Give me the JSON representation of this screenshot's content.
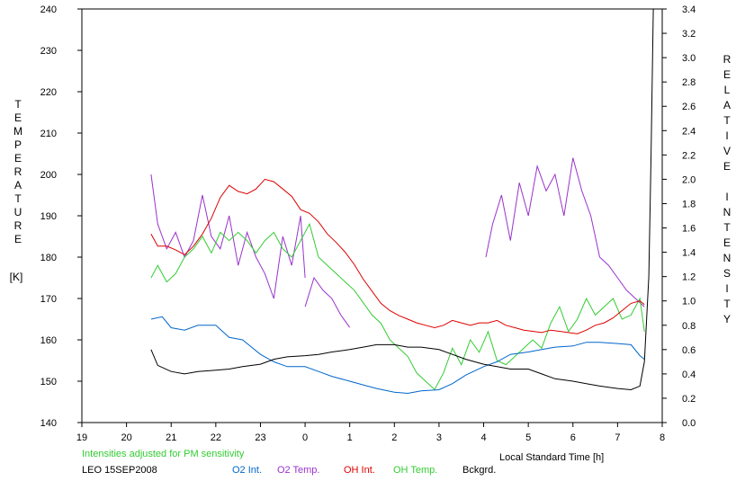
{
  "chart_data": {
    "type": "line",
    "left_axis": {
      "title": "TEMPERATURE",
      "unit": "[K]",
      "ticks": [
        "140",
        "150",
        "160",
        "170",
        "180",
        "190",
        "200",
        "210",
        "220",
        "230",
        "240"
      ],
      "range": [
        140,
        240
      ]
    },
    "right_axis": {
      "title": "RELATIVE INTENSITY",
      "ticks": [
        "0.0",
        "0.2",
        "0.4",
        "0.6",
        "0.8",
        "1.0",
        "1.2",
        "1.4",
        "1.6",
        "1.8",
        "2.0",
        "2.2",
        "2.4",
        "2.6",
        "2.8",
        "3.0",
        "3.2",
        "3.4"
      ],
      "range": [
        0,
        3.4
      ]
    },
    "x_axis": {
      "label": "Local Standard Time [h]",
      "ticks": [
        "19",
        "20",
        "21",
        "22",
        "23",
        "0",
        "1",
        "2",
        "3",
        "4",
        "5",
        "6",
        "7",
        "8"
      ],
      "range": [
        19,
        32
      ]
    },
    "note": "Intensities adjusted for PM sensitivity",
    "station": "LEO 15SEP2008",
    "grid": false,
    "series": [
      {
        "name": "O2 Int.",
        "axis": "right",
        "color": "#0066cc",
        "x": [
          20.55,
          20.8,
          21.0,
          21.3,
          21.6,
          22.0,
          22.3,
          22.6,
          23.0,
          23.3,
          23.6,
          24.0,
          24.3,
          24.6,
          25.0,
          25.3,
          25.6,
          26.0,
          26.3,
          26.6,
          27.0,
          27.3,
          27.6,
          28.0,
          28.3,
          28.6,
          29.0,
          29.3,
          29.6,
          30.0,
          30.3,
          30.6,
          31.0,
          31.3,
          31.5,
          31.6
        ],
        "y": [
          0.85,
          0.87,
          0.78,
          0.76,
          0.8,
          0.8,
          0.7,
          0.68,
          0.56,
          0.5,
          0.46,
          0.46,
          0.42,
          0.38,
          0.34,
          0.31,
          0.28,
          0.25,
          0.24,
          0.26,
          0.27,
          0.32,
          0.39,
          0.46,
          0.5,
          0.56,
          0.58,
          0.6,
          0.62,
          0.63,
          0.66,
          0.66,
          0.65,
          0.64,
          0.55,
          0.52
        ]
      },
      {
        "name": "O2 Temp.",
        "axis": "left",
        "color": "#9933cc",
        "segments": [
          {
            "x": [
              20.55,
              20.7,
              20.9,
              21.1,
              21.3,
              21.5,
              21.7,
              21.9,
              22.1,
              22.3,
              22.5,
              22.7,
              22.9,
              23.1,
              23.3,
              23.5,
              23.7,
              23.9,
              24.0
            ],
            "y": [
              200,
              188,
              182,
              186,
              180,
              184,
              195,
              185,
              182,
              190,
              178,
              186,
              180,
              176,
              170,
              185,
              178,
              190,
              175
            ]
          },
          {
            "x": [
              24.0,
              24.2,
              24.4,
              24.6,
              24.8,
              25.0
            ],
            "y": [
              168,
              175,
              172,
              170,
              166,
              163
            ]
          },
          {
            "x": [
              28.05,
              28.2,
              28.4,
              28.6,
              28.8,
              29.0,
              29.2,
              29.4,
              29.6,
              29.8,
              30.0,
              30.2,
              30.4,
              30.6,
              30.8,
              31.0,
              31.2,
              31.4,
              31.6
            ],
            "y": [
              180,
              188,
              195,
              184,
              198,
              190,
              202,
              196,
              200,
              190,
              204,
              196,
              190,
              180,
              178,
              175,
              172,
              170,
              168
            ]
          }
        ]
      },
      {
        "name": "OH Int.",
        "axis": "right",
        "color": "#dd0000",
        "x": [
          20.55,
          20.7,
          20.9,
          21.1,
          21.3,
          21.5,
          21.7,
          21.9,
          22.1,
          22.3,
          22.5,
          22.7,
          22.9,
          23.1,
          23.3,
          23.5,
          23.7,
          23.9,
          24.1,
          24.3,
          24.5,
          24.7,
          24.9,
          25.1,
          25.3,
          25.5,
          25.7,
          25.9,
          26.1,
          26.3,
          26.5,
          26.7,
          26.9,
          27.1,
          27.3,
          27.5,
          27.7,
          27.9,
          28.1,
          28.3,
          28.5,
          28.7,
          28.9,
          29.1,
          29.3,
          29.5,
          29.7,
          29.9,
          30.1,
          30.3,
          30.5,
          30.7,
          30.9,
          31.1,
          31.3,
          31.5,
          31.6
        ],
        "y": [
          1.55,
          1.45,
          1.45,
          1.42,
          1.38,
          1.45,
          1.55,
          1.68,
          1.85,
          1.95,
          1.9,
          1.88,
          1.92,
          2.0,
          1.98,
          1.92,
          1.86,
          1.75,
          1.72,
          1.65,
          1.55,
          1.48,
          1.4,
          1.3,
          1.18,
          1.08,
          0.98,
          0.92,
          0.88,
          0.85,
          0.82,
          0.8,
          0.78,
          0.8,
          0.84,
          0.82,
          0.8,
          0.82,
          0.82,
          0.84,
          0.8,
          0.78,
          0.76,
          0.75,
          0.74,
          0.76,
          0.75,
          0.74,
          0.73,
          0.76,
          0.8,
          0.82,
          0.86,
          0.92,
          0.98,
          1.0,
          0.97
        ]
      },
      {
        "name": "OH Temp.",
        "axis": "left",
        "color": "#33cc33",
        "x": [
          20.55,
          20.7,
          20.9,
          21.1,
          21.3,
          21.5,
          21.7,
          21.9,
          22.1,
          22.3,
          22.5,
          22.7,
          22.9,
          23.1,
          23.3,
          23.5,
          23.7,
          23.9,
          24.1,
          24.3,
          24.5,
          24.7,
          24.9,
          25.1,
          25.3,
          25.5,
          25.7,
          25.9,
          26.1,
          26.3,
          26.5,
          26.7,
          26.9,
          27.1,
          27.3,
          27.5,
          27.7,
          27.9,
          28.1,
          28.3,
          28.5,
          28.7,
          28.9,
          29.1,
          29.3,
          29.5,
          29.7,
          29.9,
          30.1,
          30.3,
          30.5,
          30.7,
          30.9,
          31.1,
          31.3,
          31.5,
          31.6
        ],
        "y": [
          175,
          178,
          174,
          176,
          180,
          182,
          185,
          181,
          186,
          184,
          186,
          184,
          181,
          184,
          186,
          182,
          180,
          184,
          188,
          180,
          178,
          176,
          174,
          172,
          169,
          166,
          164,
          160,
          158,
          156,
          152,
          150,
          148,
          152,
          158,
          154,
          160,
          157,
          162,
          155,
          154,
          156,
          158,
          160,
          158,
          164,
          168,
          162,
          165,
          170,
          166,
          168,
          170,
          165,
          166,
          170,
          162
        ]
      },
      {
        "name": "Bckgrd.",
        "axis": "right",
        "color": "#000000",
        "x": [
          20.55,
          20.7,
          21.0,
          21.3,
          21.6,
          22.0,
          22.3,
          22.6,
          23.0,
          23.3,
          23.6,
          24.0,
          24.3,
          24.6,
          25.0,
          25.3,
          25.6,
          26.0,
          26.3,
          26.6,
          27.0,
          27.3,
          27.6,
          28.0,
          28.3,
          28.6,
          29.0,
          29.3,
          29.6,
          30.0,
          30.3,
          30.6,
          31.0,
          31.3,
          31.5,
          31.6,
          31.7,
          31.75,
          31.8
        ],
        "y": [
          0.6,
          0.47,
          0.42,
          0.4,
          0.42,
          0.43,
          0.44,
          0.46,
          0.48,
          0.52,
          0.54,
          0.55,
          0.56,
          0.58,
          0.6,
          0.62,
          0.64,
          0.64,
          0.62,
          0.62,
          0.6,
          0.56,
          0.52,
          0.48,
          0.46,
          0.44,
          0.44,
          0.4,
          0.36,
          0.34,
          0.32,
          0.3,
          0.28,
          0.27,
          0.3,
          0.5,
          1.2,
          2.2,
          3.4
        ]
      }
    ]
  }
}
